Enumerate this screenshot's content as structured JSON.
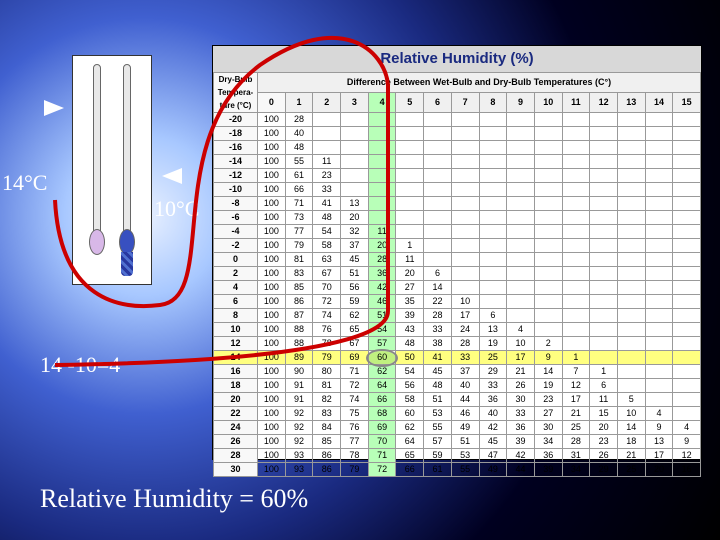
{
  "title": "Relative Humidity (%)",
  "headerRowLabel": "Dry-Bulb Tempera-ture (°C)",
  "headerSpan": "Difference Between Wet-Bulb and Dry-Bulb Temperatures (C°)",
  "diffCols": [
    0,
    1,
    2,
    3,
    4,
    5,
    6,
    7,
    8,
    9,
    10,
    11,
    12,
    13,
    14,
    15
  ],
  "rows": [
    {
      "t": -20,
      "v": [
        100,
        28
      ]
    },
    {
      "t": -18,
      "v": [
        100,
        40
      ]
    },
    {
      "t": -16,
      "v": [
        100,
        48
      ]
    },
    {
      "t": -14,
      "v": [
        100,
        55,
        11
      ]
    },
    {
      "t": -12,
      "v": [
        100,
        61,
        23
      ]
    },
    {
      "t": -10,
      "v": [
        100,
        66,
        33
      ]
    },
    {
      "t": -8,
      "v": [
        100,
        71,
        41,
        13
      ]
    },
    {
      "t": -6,
      "v": [
        100,
        73,
        48,
        20
      ]
    },
    {
      "t": -4,
      "v": [
        100,
        77,
        54,
        32,
        11
      ]
    },
    {
      "t": -2,
      "v": [
        100,
        79,
        58,
        37,
        20,
        1
      ]
    },
    {
      "t": 0,
      "v": [
        100,
        81,
        63,
        45,
        28,
        11
      ]
    },
    {
      "t": 2,
      "v": [
        100,
        83,
        67,
        51,
        36,
        20,
        6
      ]
    },
    {
      "t": 4,
      "v": [
        100,
        85,
        70,
        56,
        42,
        27,
        14
      ]
    },
    {
      "t": 6,
      "v": [
        100,
        86,
        72,
        59,
        46,
        35,
        22,
        10
      ]
    },
    {
      "t": 8,
      "v": [
        100,
        87,
        74,
        62,
        51,
        39,
        28,
        17,
        6
      ]
    },
    {
      "t": 10,
      "v": [
        100,
        88,
        76,
        65,
        54,
        43,
        33,
        24,
        13,
        4
      ]
    },
    {
      "t": 12,
      "v": [
        100,
        88,
        78,
        67,
        57,
        48,
        38,
        28,
        19,
        10,
        2
      ]
    },
    {
      "t": 14,
      "v": [
        100,
        89,
        79,
        69,
        60,
        50,
        41,
        33,
        25,
        17,
        9,
        1
      ],
      "hi": true,
      "targetCol": 4
    },
    {
      "t": 16,
      "v": [
        100,
        90,
        80,
        71,
        62,
        54,
        45,
        37,
        29,
        21,
        14,
        7,
        1
      ]
    },
    {
      "t": 18,
      "v": [
        100,
        91,
        81,
        72,
        64,
        56,
        48,
        40,
        33,
        26,
        19,
        12,
        6
      ]
    },
    {
      "t": 20,
      "v": [
        100,
        91,
        82,
        74,
        66,
        58,
        51,
        44,
        36,
        30,
        23,
        17,
        11,
        5
      ]
    },
    {
      "t": 22,
      "v": [
        100,
        92,
        83,
        75,
        68,
        60,
        53,
        46,
        40,
        33,
        27,
        21,
        15,
        10,
        4
      ]
    },
    {
      "t": 24,
      "v": [
        100,
        92,
        84,
        76,
        69,
        62,
        55,
        49,
        42,
        36,
        30,
        25,
        20,
        14,
        9,
        4
      ]
    },
    {
      "t": 26,
      "v": [
        100,
        92,
        85,
        77,
        70,
        64,
        57,
        51,
        45,
        39,
        34,
        28,
        23,
        18,
        13,
        9
      ]
    },
    {
      "t": 28,
      "v": [
        100,
        93,
        86,
        78,
        71,
        65,
        59,
        53,
        47,
        42,
        36,
        31,
        26,
        21,
        17,
        12
      ]
    },
    {
      "t": 30,
      "v": [
        100,
        93,
        86,
        79,
        72,
        66,
        61,
        55,
        49,
        44,
        39,
        34,
        29,
        25,
        20,
        16
      ]
    }
  ],
  "hiCol": 4,
  "labels": {
    "dry": "14°C",
    "wet": "10°C",
    "eq": "14 -10=4",
    "rh": "Relative Humidity = 60%"
  },
  "colors": {
    "colHi": "#b8ffb8",
    "rowHi": "#ffff80",
    "curve": "#cc0000",
    "curveW": 4
  }
}
